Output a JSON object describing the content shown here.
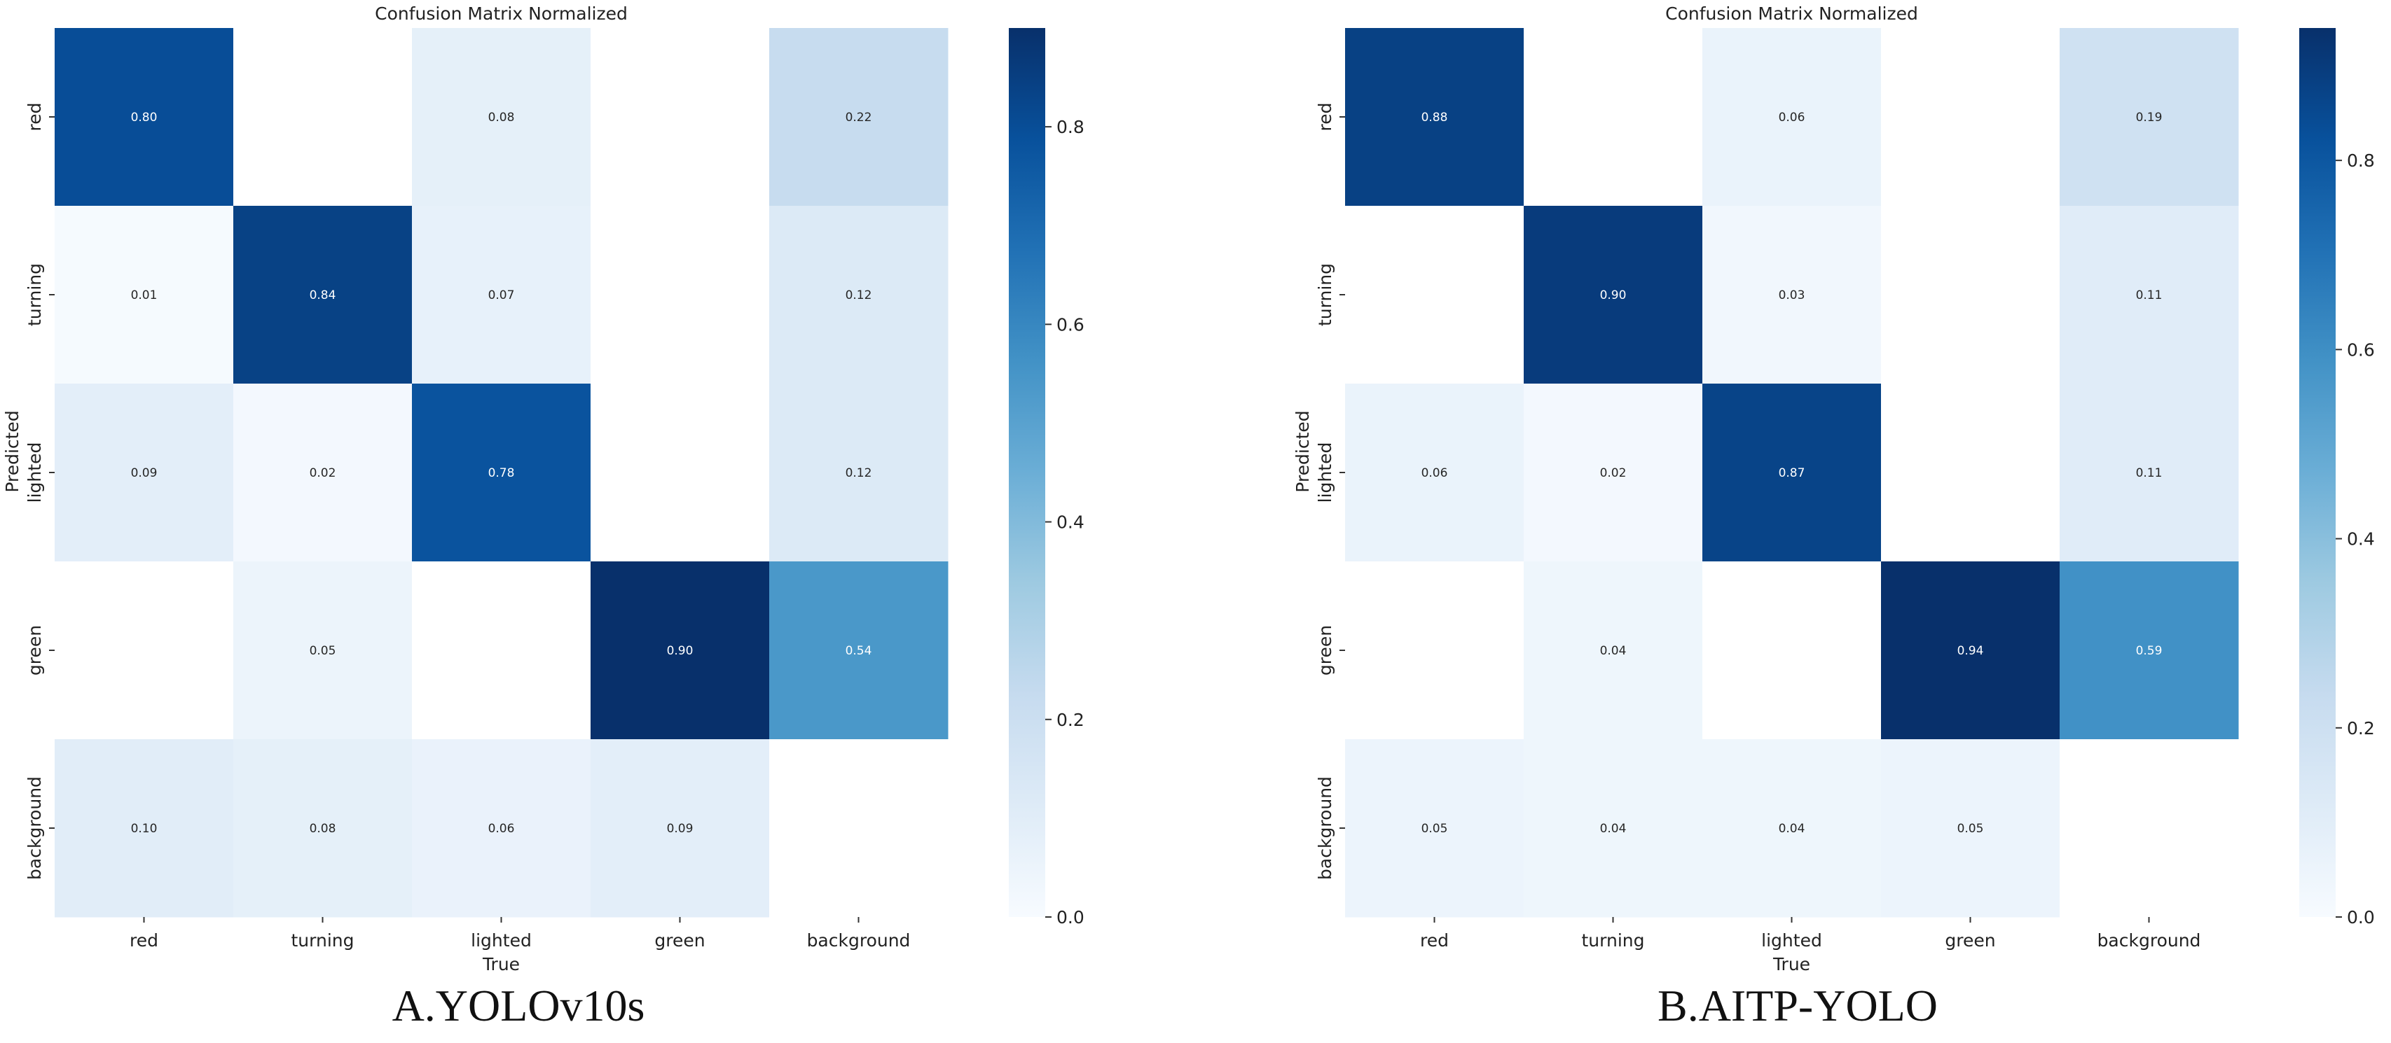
{
  "figure": {
    "captions": [
      "A.YOLOv10s",
      "B.AITP-YOLO"
    ]
  },
  "colormap": {
    "name": "Blues",
    "stops": [
      "#f7fbff",
      "#deebf7",
      "#c6dbef",
      "#9ecae1",
      "#6baed6",
      "#4292c6",
      "#2171b5",
      "#08519c",
      "#08306b"
    ]
  },
  "chart_data": [
    {
      "type": "heatmap",
      "title": "Confusion Matrix Normalized",
      "xlabel": "True",
      "ylabel": "Predicted",
      "x_categories": [
        "red",
        "turning",
        "lighted",
        "green",
        "background"
      ],
      "y_categories": [
        "red",
        "turning",
        "lighted",
        "green",
        "background"
      ],
      "values": [
        [
          0.8,
          null,
          0.08,
          null,
          0.22
        ],
        [
          0.01,
          0.84,
          0.07,
          null,
          0.12
        ],
        [
          0.09,
          0.02,
          0.78,
          null,
          0.12
        ],
        [
          null,
          0.05,
          null,
          0.9,
          0.54
        ],
        [
          0.1,
          0.08,
          0.06,
          0.09,
          null
        ]
      ],
      "value_labels": [
        [
          "0.80",
          "",
          "0.08",
          "",
          "0.22"
        ],
        [
          "0.01",
          "0.84",
          "0.07",
          "",
          "0.12"
        ],
        [
          "0.09",
          "0.02",
          "0.78",
          "",
          "0.12"
        ],
        [
          "",
          "0.05",
          "",
          "0.90",
          "0.54"
        ],
        [
          "0.10",
          "0.08",
          "0.06",
          "0.09",
          ""
        ]
      ],
      "colorbar": {
        "range": [
          0.0,
          0.9
        ],
        "ticks": [
          0.0,
          0.2,
          0.4,
          0.6,
          0.8
        ],
        "tick_labels": [
          "0.0",
          "0.2",
          "0.4",
          "0.6",
          "0.8"
        ]
      }
    },
    {
      "type": "heatmap",
      "title": "Confusion Matrix Normalized",
      "xlabel": "True",
      "ylabel": "Predicted",
      "x_categories": [
        "red",
        "turning",
        "lighted",
        "green",
        "background"
      ],
      "y_categories": [
        "red",
        "turning",
        "lighted",
        "green",
        "background"
      ],
      "values": [
        [
          0.88,
          null,
          0.06,
          null,
          0.19
        ],
        [
          null,
          0.9,
          0.03,
          null,
          0.11
        ],
        [
          0.06,
          0.02,
          0.87,
          null,
          0.11
        ],
        [
          null,
          0.04,
          null,
          0.94,
          0.59
        ],
        [
          0.05,
          0.04,
          0.04,
          0.05,
          null
        ]
      ],
      "value_labels": [
        [
          "0.88",
          "",
          "0.06",
          "",
          "0.19"
        ],
        [
          "",
          "0.90",
          "0.03",
          "",
          "0.11"
        ],
        [
          "0.06",
          "0.02",
          "0.87",
          "",
          "0.11"
        ],
        [
          "",
          "0.04",
          "",
          "0.94",
          "0.59"
        ],
        [
          "0.05",
          "0.04",
          "0.04",
          "0.05",
          ""
        ]
      ],
      "colorbar": {
        "range": [
          0.0,
          0.94
        ],
        "ticks": [
          0.0,
          0.2,
          0.4,
          0.6,
          0.8
        ],
        "tick_labels": [
          "0.0",
          "0.2",
          "0.4",
          "0.6",
          "0.8"
        ]
      }
    }
  ]
}
